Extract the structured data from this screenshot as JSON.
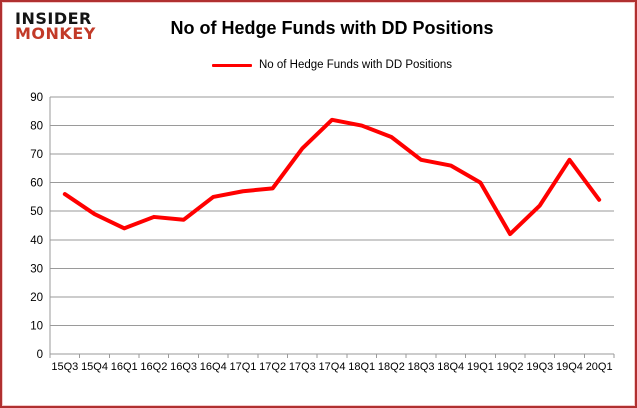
{
  "logo": {
    "line1": "INSIDER",
    "line2": "MONKEY",
    "line1_color": "#141414",
    "line2_color": "#c23a28"
  },
  "header": {
    "title": "No of Hedge Funds with DD Positions"
  },
  "legend": {
    "label": "No of Hedge Funds with DD Positions",
    "line_color": "#ff0000"
  },
  "chart_data": {
    "type": "line",
    "title": "No of Hedge Funds with DD Positions",
    "categories": [
      "15Q3",
      "15Q4",
      "16Q1",
      "16Q2",
      "16Q3",
      "16Q4",
      "17Q1",
      "17Q2",
      "17Q3",
      "17Q4",
      "18Q1",
      "18Q2",
      "18Q3",
      "18Q4",
      "19Q1",
      "19Q2",
      "19Q3",
      "19Q4",
      "20Q1"
    ],
    "series": [
      {
        "name": "No of Hedge Funds with DD Positions",
        "color": "#ff0000",
        "values": [
          56,
          49,
          44,
          48,
          47,
          55,
          57,
          58,
          72,
          82,
          80,
          76,
          68,
          66,
          60,
          42,
          52,
          68,
          54
        ]
      }
    ],
    "ylim": [
      0,
      90
    ],
    "ytick_step": 10,
    "xlabel": "",
    "ylabel": "",
    "grid": "horizontal",
    "gridline_color": "#9a9a9a",
    "axis_text_color": "#000000",
    "legend_position": "top"
  }
}
